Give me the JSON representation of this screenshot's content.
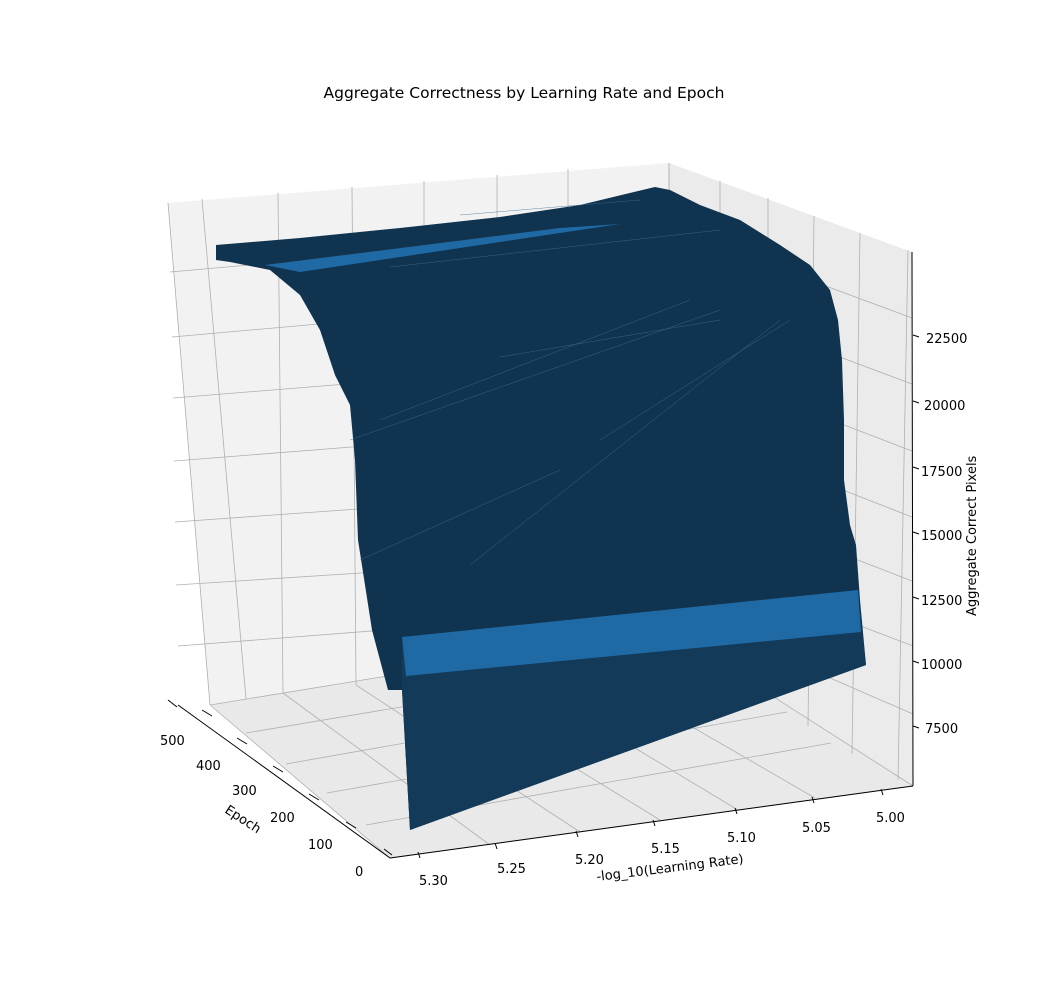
{
  "chart_data": {
    "type": "surface",
    "title": "Aggregate Correctness by Learning Rate and Epoch",
    "xlabel": "-log_10(Learning Rate)",
    "ylabel": "Epoch",
    "zlabel": "Aggregate Correct Pixels",
    "x_ticks": [
      "5.30",
      "5.25",
      "5.20",
      "5.15",
      "5.10",
      "5.05",
      "5.00"
    ],
    "y_ticks": [
      "0",
      "100",
      "200",
      "300",
      "400",
      "500"
    ],
    "z_ticks": [
      "7500",
      "10000",
      "12500",
      "15000",
      "17500",
      "20000",
      "22500"
    ],
    "xlim": [
      5.0,
      5.3
    ],
    "ylim": [
      0,
      500
    ],
    "zlim": [
      6000,
      24500
    ],
    "grid": true,
    "colors": {
      "surface": "#10344f",
      "highlight": "#1f6aa5",
      "pane": "#f2f2f2",
      "grid": "#b0b0b0"
    },
    "series": [
      {
        "x": 5.0,
        "values": [
          10500,
          24000,
          24000,
          24000,
          24000,
          24000
        ]
      },
      {
        "x": 5.3,
        "values": [
          6500,
          8500,
          15500,
          21500,
          22500,
          22800
        ]
      }
    ]
  }
}
